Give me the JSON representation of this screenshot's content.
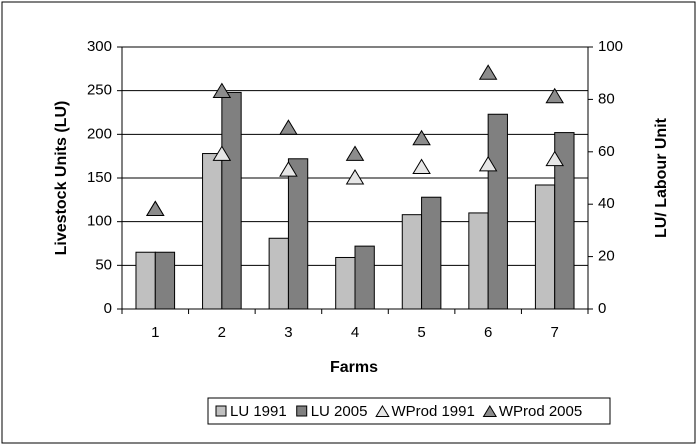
{
  "chart_data": {
    "type": "bar",
    "xlabel": "Farms",
    "ylabel": "Livestock Units (LU)",
    "y2label": "LU/ Labour Unit",
    "categories": [
      "1",
      "2",
      "3",
      "4",
      "5",
      "6",
      "7"
    ],
    "series": [
      {
        "name": "LU 1991",
        "type": "bar",
        "color": "#c0c0c0",
        "values": [
          65,
          178,
          81,
          59,
          108,
          110,
          142
        ]
      },
      {
        "name": "LU 2005",
        "type": "bar",
        "color": "#808080",
        "values": [
          65,
          248,
          172,
          72,
          128,
          223,
          202
        ]
      },
      {
        "name": "WProd 1991",
        "type": "scatter",
        "axis": "y2",
        "color": "#e6e6e6",
        "values": [
          38,
          59,
          53,
          50,
          54,
          55,
          57
        ]
      },
      {
        "name": "WProd 2005",
        "type": "scatter",
        "axis": "y2",
        "color": "#8c8c8c",
        "values": [
          38,
          83,
          69,
          59,
          65,
          90,
          81
        ]
      }
    ],
    "ylim": [
      0,
      300
    ],
    "yticks": [
      0,
      50,
      100,
      150,
      200,
      250,
      300
    ],
    "y2lim": [
      0,
      100
    ],
    "y2ticks": [
      0,
      20,
      40,
      60,
      80,
      100
    ],
    "grid": true,
    "legend": "bottom"
  }
}
